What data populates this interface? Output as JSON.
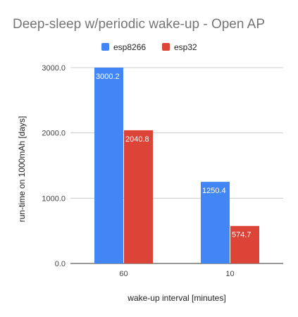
{
  "chart_data": {
    "type": "bar",
    "title": "Deep-sleep w/periodic wake-up - Open AP",
    "xlabel": "wake-up interval [minutes]",
    "ylabel": "run-time on 1000mAh [days]",
    "categories": [
      "60",
      "10"
    ],
    "series": [
      {
        "name": "esp8266",
        "color": "#4285f4",
        "values": [
          3000.2,
          1250.4
        ]
      },
      {
        "name": "esp32",
        "color": "#db4437",
        "values": [
          2040.8,
          574.7
        ]
      }
    ],
    "yticks": [
      "0.0",
      "1000.0",
      "2000.0",
      "3000.0"
    ],
    "ylim": [
      0,
      3000
    ],
    "grid": true,
    "legend_position": "top"
  }
}
